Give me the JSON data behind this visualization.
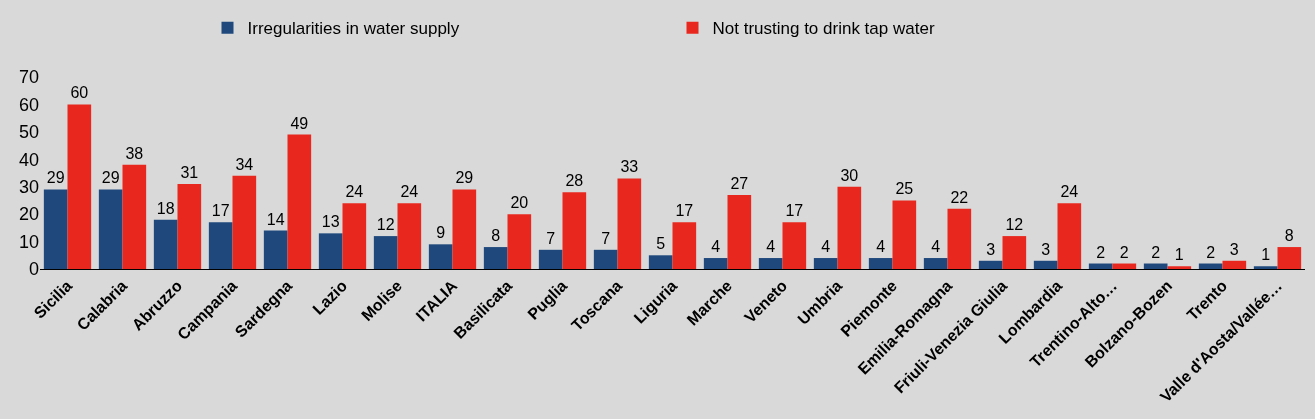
{
  "chart_data": {
    "type": "bar",
    "categories": [
      "Sicilia",
      "Calabria",
      "Abruzzo",
      "Campania",
      "Sardegna",
      "Lazio",
      "Molise",
      "ITALIA",
      "Basilicata",
      "Puglia",
      "Toscana",
      "Liguria",
      "Marche",
      "Veneto",
      "Umbria",
      "Piemonte",
      "Emilia-Romagna",
      "Friuli-Venezia Giulia",
      "Lombardia",
      "Trentino-Alto…",
      "Bolzano-Bozen",
      "Trento",
      "Valle d'Aosta/Vallée…"
    ],
    "series": [
      {
        "name": "Irregularities in water supply",
        "color": "#1f497d",
        "values": [
          29,
          29,
          18,
          17,
          14,
          13,
          12,
          9,
          8,
          7,
          7,
          5,
          4,
          4,
          4,
          4,
          4,
          3,
          3,
          2,
          2,
          2,
          1
        ]
      },
      {
        "name": "Not trusting to drink tap water",
        "color": "#e8281e",
        "values": [
          60,
          38,
          31,
          34,
          49,
          24,
          24,
          29,
          20,
          28,
          33,
          17,
          27,
          17,
          30,
          25,
          22,
          12,
          24,
          2,
          1,
          3,
          8
        ]
      }
    ],
    "ylim": [
      0,
      70
    ],
    "yticks": [
      0,
      10,
      20,
      30,
      40,
      50,
      60,
      70
    ],
    "grid": false,
    "legend": "top",
    "data_labels": true
  }
}
